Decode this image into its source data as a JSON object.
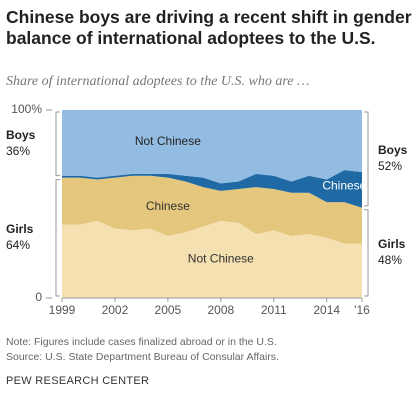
{
  "chart_data": {
    "type": "stacked_area",
    "title": "Chinese boys are driving a recent shift in gender balance of international adoptees to the U.S.",
    "subtitle": "Share of international adoptees to the U.S. who are …",
    "x": [
      1999,
      2000,
      2001,
      2002,
      2003,
      2004,
      2005,
      2006,
      2007,
      2008,
      2009,
      2010,
      2011,
      2012,
      2013,
      2014,
      2015,
      2016
    ],
    "series": [
      {
        "name": "Not Chinese",
        "color": "#f4e0b0",
        "values": [
          39,
          39,
          41,
          37,
          36,
          37,
          33,
          35,
          38,
          41,
          40,
          34,
          36,
          33,
          34,
          32,
          29,
          29
        ]
      },
      {
        "name": "Chinese",
        "color": "#e4c67c",
        "values": [
          25,
          25,
          22,
          27,
          29,
          28,
          31,
          27,
          21,
          16,
          18,
          25,
          22,
          23,
          22,
          19,
          22,
          19
        ]
      },
      {
        "name": "Chinese",
        "color": "#1f6aa5",
        "values": [
          1,
          1,
          1,
          1,
          1,
          1,
          2,
          3,
          5,
          4,
          4,
          7,
          7,
          6,
          9,
          12,
          17,
          19
        ]
      },
      {
        "name": "Not Chinese",
        "color": "#93bce2",
        "values": [
          35,
          35,
          36,
          35,
          34,
          34,
          34,
          35,
          36,
          39,
          38,
          34,
          35,
          38,
          35,
          37,
          32,
          33
        ]
      }
    ],
    "xlim": [
      1999,
      2016
    ],
    "xticks": [
      1999,
      2002,
      2005,
      2008,
      2011,
      2014,
      {
        "value": 2016,
        "label": "'16"
      }
    ],
    "ylim": [
      0,
      100
    ],
    "yticks": [
      {
        "value": 100,
        "label": "100%"
      },
      0
    ],
    "left_labels": [
      {
        "text": "Boys",
        "value": 36,
        "label": "36%"
      },
      {
        "text": "Girls",
        "value": 64,
        "label": "64%"
      }
    ],
    "right_labels": [
      {
        "text": "Boys",
        "value": 52,
        "label": "52%"
      },
      {
        "text": "Girls",
        "value": 48,
        "label": "48%"
      }
    ],
    "notes": [
      "Note: Figures include cases finalized abroad or in the U.S.",
      "Source: U.S. State Department Bureau of Consular Affairs."
    ],
    "footer": "PEW RESEARCH CENTER"
  }
}
